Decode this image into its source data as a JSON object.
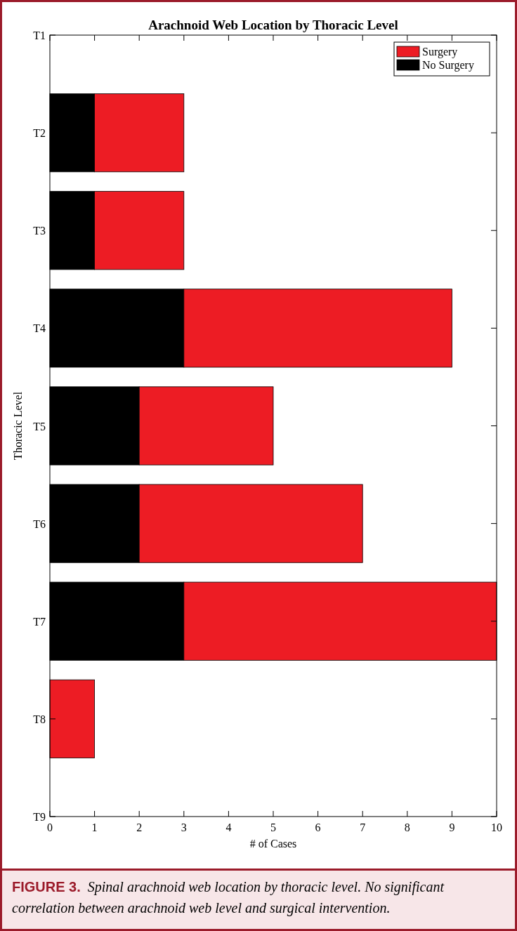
{
  "chart_data": {
    "type": "bar",
    "orientation": "horizontal",
    "stacked": true,
    "title": "Arachnoid Web Location by Thoracic Level",
    "xlabel": "# of Cases",
    "ylabel": "Thoracic Level",
    "categories": [
      "T1",
      "T2",
      "T3",
      "T4",
      "T5",
      "T6",
      "T7",
      "T8",
      "T9"
    ],
    "series": [
      {
        "name": "No Surgery",
        "color": "#000000",
        "values": [
          0,
          1,
          1,
          3,
          2,
          2,
          3,
          0,
          0
        ]
      },
      {
        "name": "Surgery",
        "color": "#ed1c24",
        "values": [
          0,
          2,
          2,
          6,
          3,
          5,
          7,
          1,
          0
        ]
      }
    ],
    "xlim": [
      0,
      10
    ],
    "xticks": [
      0,
      1,
      2,
      3,
      4,
      5,
      6,
      7,
      8,
      9,
      10
    ],
    "legend": "top right",
    "grid": false,
    "annotations": [
      "FIGURE 3.",
      "Spinal arachnoid web location by thoracic level. No significant correlation between arachnoid web level and surgical intervention."
    ]
  }
}
